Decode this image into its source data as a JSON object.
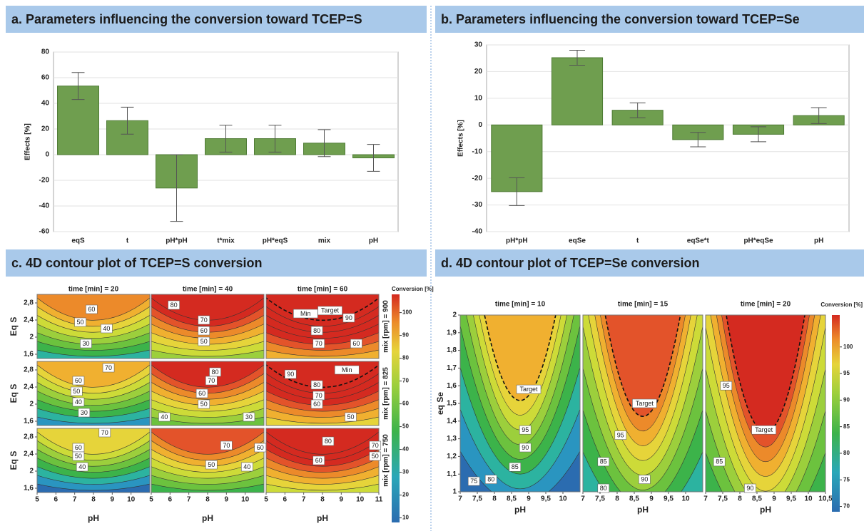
{
  "chart_data": [
    {
      "type": "bar",
      "title": "a. Parameters influencing the conversion toward TCEP=S",
      "ylabel": "Effects [%]",
      "categories": [
        "eqS",
        "t",
        "pH*pH",
        "t*mix",
        "pH*eqS",
        "mix",
        "pH"
      ],
      "values": [
        53.5,
        26.5,
        -26,
        12.5,
        12.5,
        9,
        -2.5
      ],
      "errors": [
        10.5,
        10.5,
        26,
        10.5,
        10.5,
        10.5,
        10.5
      ],
      "color": "#6f9e4f",
      "ylim": [
        -60,
        80
      ],
      "yticks": [
        -60,
        -40,
        -20,
        0,
        20,
        40,
        60,
        80
      ],
      "grid": true
    },
    {
      "type": "bar",
      "title": "b. Parameters influencing the conversion toward TCEP=Se",
      "ylabel": "Effects [%]",
      "categories": [
        "pH*pH",
        "eqSe",
        "t",
        "eqSe*t",
        "pH*eqSe",
        "pH"
      ],
      "values": [
        -25,
        25.2,
        5.5,
        -5.5,
        -3.5,
        3.5
      ],
      "errors": [
        5.2,
        2.8,
        2.8,
        2.7,
        2.8,
        3
      ],
      "color": "#6f9e4f",
      "ylim": [
        -40,
        30
      ],
      "yticks": [
        -40,
        -30,
        -20,
        -10,
        0,
        10,
        20,
        30
      ],
      "grid": true
    },
    {
      "type": "contour",
      "title": "c. 4D contour plot of TCEP=S conversion",
      "col_titles": [
        "time [min] = 20",
        "time [min] = 40",
        "time [min] = 60"
      ],
      "row_titles": [
        "mix [rpm] = 900",
        "mix [rpm] = 825",
        "mix [rpm] = 750"
      ],
      "xlabel": "pH",
      "ylabel": "Eq S",
      "xlim": [
        5,
        11
      ],
      "xticks": [
        5,
        6,
        7,
        8,
        9,
        10,
        11
      ],
      "ylim": [
        1.5,
        3
      ],
      "yticks": [
        {
          "value": 1.6,
          "label": "1,6"
        },
        2,
        {
          "value": 2.4,
          "label": "2,4"
        },
        {
          "value": 2.8,
          "label": "2,8"
        }
      ],
      "colorbar_title": "Conversion [%]",
      "clim": [
        8,
        108
      ],
      "cticks": [
        10,
        20,
        30,
        40,
        50,
        60,
        70,
        80,
        90,
        100
      ],
      "labels": [
        [
          {
            "x": 7.9,
            "y": 2.65,
            "text": 60
          },
          {
            "x": 7.3,
            "y": 2.35,
            "text": 50
          },
          {
            "x": 8.7,
            "y": 2.2,
            "text": 40
          },
          {
            "x": 7.6,
            "y": 1.85,
            "text": 30
          }
        ],
        [
          {
            "x": 6.2,
            "y": 2.75,
            "text": 80
          },
          {
            "x": 7.8,
            "y": 2.4,
            "text": 70
          },
          {
            "x": 7.8,
            "y": 2.15,
            "text": 60
          },
          {
            "x": 7.8,
            "y": 1.9,
            "text": 50
          }
        ],
        [
          {
            "x": 7.1,
            "y": 2.55,
            "text": "Min"
          },
          {
            "x": 8.4,
            "y": 2.62,
            "text": "Target"
          },
          {
            "x": 9.4,
            "y": 2.45,
            "text": 90
          },
          {
            "x": 7.7,
            "y": 2.15,
            "text": 80
          },
          {
            "x": 7.8,
            "y": 1.85,
            "text": 70
          },
          {
            "x": 9.8,
            "y": 1.85,
            "text": 60
          }
        ],
        [
          {
            "x": 8.8,
            "y": 2.85,
            "text": 70
          },
          {
            "x": 7.2,
            "y": 2.55,
            "text": 60
          },
          {
            "x": 7.1,
            "y": 2.3,
            "text": 50
          },
          {
            "x": 7.2,
            "y": 2.05,
            "text": 40
          },
          {
            "x": 7.5,
            "y": 1.8,
            "text": 30
          }
        ],
        [
          {
            "x": 8.4,
            "y": 2.75,
            "text": 80
          },
          {
            "x": 8.2,
            "y": 2.55,
            "text": 70
          },
          {
            "x": 7.7,
            "y": 2.25,
            "text": 60
          },
          {
            "x": 7.8,
            "y": 2.0,
            "text": 50
          },
          {
            "x": 5.7,
            "y": 1.7,
            "text": 40
          },
          {
            "x": 10.2,
            "y": 1.7,
            "text": 30
          }
        ],
        [
          {
            "x": 6.3,
            "y": 2.7,
            "text": 90
          },
          {
            "x": 9.3,
            "y": 2.8,
            "text": "Min"
          },
          {
            "x": 7.7,
            "y": 2.45,
            "text": 80
          },
          {
            "x": 7.8,
            "y": 2.2,
            "text": 70
          },
          {
            "x": 7.7,
            "y": 2.0,
            "text": 60
          },
          {
            "x": 9.5,
            "y": 1.7,
            "text": 50
          }
        ],
        [
          {
            "x": 8.6,
            "y": 2.9,
            "text": 70
          },
          {
            "x": 7.2,
            "y": 2.55,
            "text": 60
          },
          {
            "x": 7.2,
            "y": 2.35,
            "text": 50
          },
          {
            "x": 7.4,
            "y": 2.1,
            "text": 40
          }
        ],
        [
          {
            "x": 9,
            "y": 2.6,
            "text": 70
          },
          {
            "x": 10.8,
            "y": 2.55,
            "text": 60
          },
          {
            "x": 8.2,
            "y": 2.15,
            "text": 50
          },
          {
            "x": 10.1,
            "y": 2.1,
            "text": 40
          }
        ],
        [
          {
            "x": 8.3,
            "y": 2.7,
            "text": 80
          },
          {
            "x": 10.8,
            "y": 2.6,
            "text": 70
          },
          {
            "x": 7.8,
            "y": 2.25,
            "text": 60
          },
          {
            "x": 10.8,
            "y": 2.35,
            "text": 50
          }
        ]
      ]
    },
    {
      "type": "contour",
      "title": "d. 4D contour plot of TCEP=Se conversion",
      "col_titles": [
        "time [min] = 10",
        "time [min] = 15",
        "time [min] = 20"
      ],
      "xlabel": "pH",
      "ylabel": "eq Se",
      "xlim": [
        7,
        10.5
      ],
      "xticks": [
        7,
        {
          "value": 7.5,
          "label": "7,5"
        },
        8,
        {
          "value": 8.5,
          "label": "8,5"
        },
        9,
        {
          "value": 9.5,
          "label": "9,5"
        },
        10,
        {
          "value": 10.5,
          "label": "10,5"
        }
      ],
      "ylim": [
        1,
        2
      ],
      "yticks": [
        1,
        {
          "value": 1.1,
          "label": "1,1"
        },
        {
          "value": 1.2,
          "label": "1,2"
        },
        {
          "value": 1.3,
          "label": "1,3"
        },
        {
          "value": 1.4,
          "label": "1,4"
        },
        {
          "value": 1.5,
          "label": "1,5"
        },
        {
          "value": 1.6,
          "label": "1,6"
        },
        {
          "value": 1.7,
          "label": "1,7"
        },
        {
          "value": 1.8,
          "label": "1,8"
        },
        {
          "value": 1.9,
          "label": "1,9"
        },
        2
      ],
      "colorbar_title": "Conversion [%]",
      "clim": [
        69,
        106
      ],
      "cticks": [
        70,
        75,
        80,
        85,
        90,
        95,
        100
      ],
      "labels": [
        [
          {
            "x": 9,
            "y": 1.58,
            "text": "Target"
          },
          {
            "x": 8.9,
            "y": 1.35,
            "text": 95
          },
          {
            "x": 8.9,
            "y": 1.25,
            "text": 90
          },
          {
            "x": 8.6,
            "y": 1.14,
            "text": 85
          },
          {
            "x": 7.9,
            "y": 1.07,
            "text": 80
          },
          {
            "x": 7.4,
            "y": 1.06,
            "text": 75
          }
        ],
        [
          {
            "x": 8.8,
            "y": 1.5,
            "text": "Target"
          },
          {
            "x": 8.1,
            "y": 1.32,
            "text": 95
          },
          {
            "x": 7.6,
            "y": 1.17,
            "text": 85
          },
          {
            "x": 8.8,
            "y": 1.07,
            "text": 90
          },
          {
            "x": 7.6,
            "y": 1.02,
            "text": 80
          }
        ],
        [
          {
            "x": 8.7,
            "y": 1.35,
            "text": "Target"
          },
          {
            "x": 7.6,
            "y": 1.6,
            "text": 95
          },
          {
            "x": 7.4,
            "y": 1.17,
            "text": 85
          },
          {
            "x": 8.3,
            "y": 1.02,
            "text": 90
          }
        ]
      ]
    }
  ]
}
